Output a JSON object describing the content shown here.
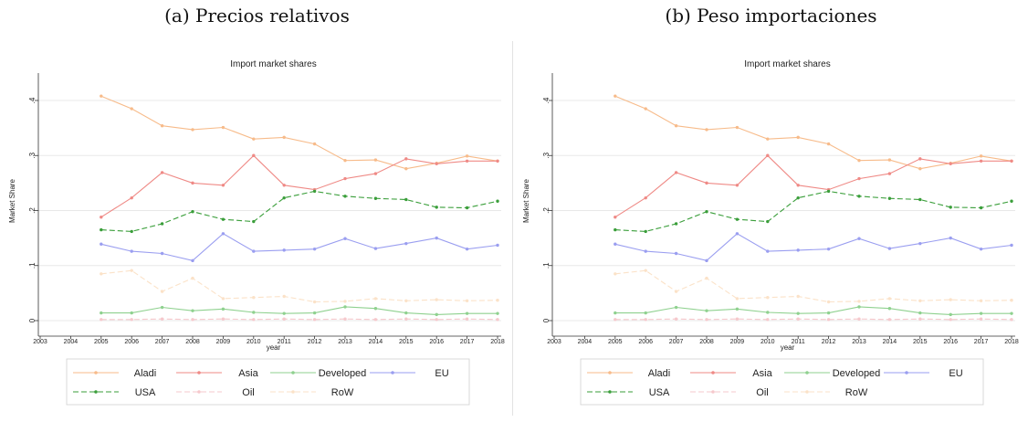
{
  "panels": [
    {
      "caption": "(a) Precios relativos",
      "chart_data": {
        "type": "line",
        "title": "Import market shares",
        "xlabel": "year",
        "ylabel": "Market Share",
        "xlim": [
          2003,
          2018
        ],
        "ylim": [
          0,
          0.4
        ],
        "xticks": [
          "2003",
          "2004",
          "2005",
          "2006",
          "2007",
          "2008",
          "2009",
          "2010",
          "2011",
          "2012",
          "2013",
          "2014",
          "2015",
          "2016",
          "2017",
          "2018"
        ],
        "yticks": [
          "0",
          ".1",
          ".2",
          ".3",
          ".4"
        ],
        "legend_position": "bottom",
        "x": [
          2005,
          2006,
          2007,
          2008,
          2009,
          2010,
          2011,
          2012,
          2013,
          2014,
          2015,
          2016,
          2017,
          2018
        ],
        "series": [
          {
            "name": "Aladi",
            "color": "#f7bb8a",
            "dash": "solid",
            "values": [
              0.408,
              0.385,
              0.354,
              0.347,
              0.351,
              0.33,
              0.333,
              0.321,
              0.291,
              0.292,
              0.276,
              0.286,
              0.299,
              0.29
            ]
          },
          {
            "name": "Asia",
            "color": "#ef8a86",
            "dash": "solid",
            "values": [
              0.188,
              0.223,
              0.269,
              0.25,
              0.246,
              0.3,
              0.246,
              0.238,
              0.258,
              0.267,
              0.294,
              0.285,
              0.29,
              0.29
            ]
          },
          {
            "name": "Developed",
            "color": "#8fd18f",
            "dash": "solid",
            "values": [
              0.014,
              0.014,
              0.024,
              0.018,
              0.021,
              0.015,
              0.013,
              0.014,
              0.025,
              0.022,
              0.014,
              0.011,
              0.013,
              0.013
            ]
          },
          {
            "name": "EU",
            "color": "#9a9ef0",
            "dash": "solid",
            "values": [
              0.139,
              0.126,
              0.122,
              0.109,
              0.158,
              0.126,
              0.128,
              0.13,
              0.149,
              0.131,
              0.14,
              0.15,
              0.13,
              0.137
            ]
          },
          {
            "name": "USA",
            "color": "#3a9e3a",
            "dash": "dashed",
            "values": [
              0.165,
              0.162,
              0.176,
              0.198,
              0.184,
              0.18,
              0.223,
              0.235,
              0.226,
              0.222,
              0.22,
              0.206,
              0.205,
              0.217
            ]
          },
          {
            "name": "Oil",
            "color": "#f6c8cc",
            "dash": "dashed",
            "values": [
              0.002,
              0.002,
              0.003,
              0.002,
              0.003,
              0.002,
              0.003,
              0.002,
              0.003,
              0.002,
              0.003,
              0.002,
              0.003,
              0.002
            ]
          },
          {
            "name": "RoW",
            "color": "#fbe2c8",
            "dash": "dashed",
            "values": [
              0.085,
              0.091,
              0.053,
              0.077,
              0.04,
              0.042,
              0.044,
              0.034,
              0.035,
              0.04,
              0.036,
              0.038,
              0.036,
              0.037
            ]
          }
        ]
      }
    },
    {
      "caption": "(b) Peso importaciones",
      "chart_data": {
        "type": "line",
        "title": "Import market shares",
        "xlabel": "year",
        "ylabel": "Market Share",
        "xlim": [
          2003,
          2018
        ],
        "ylim": [
          0,
          0.4
        ],
        "xticks": [
          "2003",
          "2004",
          "2005",
          "2006",
          "2007",
          "2008",
          "2009",
          "2010",
          "2011",
          "2012",
          "2013",
          "2014",
          "2015",
          "2016",
          "2017",
          "2018"
        ],
        "yticks": [
          "0",
          ".1",
          ".2",
          ".3",
          ".4"
        ],
        "legend_position": "bottom",
        "x": [
          2005,
          2006,
          2007,
          2008,
          2009,
          2010,
          2011,
          2012,
          2013,
          2014,
          2015,
          2016,
          2017,
          2018
        ],
        "series": [
          {
            "name": "Aladi",
            "color": "#f7bb8a",
            "dash": "solid",
            "values": [
              0.408,
              0.385,
              0.354,
              0.347,
              0.351,
              0.33,
              0.333,
              0.321,
              0.291,
              0.292,
              0.276,
              0.286,
              0.299,
              0.29
            ]
          },
          {
            "name": "Asia",
            "color": "#ef8a86",
            "dash": "solid",
            "values": [
              0.188,
              0.223,
              0.269,
              0.25,
              0.246,
              0.3,
              0.246,
              0.238,
              0.258,
              0.267,
              0.294,
              0.285,
              0.29,
              0.29
            ]
          },
          {
            "name": "Developed",
            "color": "#8fd18f",
            "dash": "solid",
            "values": [
              0.014,
              0.014,
              0.024,
              0.018,
              0.021,
              0.015,
              0.013,
              0.014,
              0.025,
              0.022,
              0.014,
              0.011,
              0.013,
              0.013
            ]
          },
          {
            "name": "EU",
            "color": "#9a9ef0",
            "dash": "solid",
            "values": [
              0.139,
              0.126,
              0.122,
              0.109,
              0.158,
              0.126,
              0.128,
              0.13,
              0.149,
              0.131,
              0.14,
              0.15,
              0.13,
              0.137
            ]
          },
          {
            "name": "USA",
            "color": "#3a9e3a",
            "dash": "dashed",
            "values": [
              0.165,
              0.162,
              0.176,
              0.198,
              0.184,
              0.18,
              0.223,
              0.235,
              0.226,
              0.222,
              0.22,
              0.206,
              0.205,
              0.217
            ]
          },
          {
            "name": "Oil",
            "color": "#f6c8cc",
            "dash": "dashed",
            "values": [
              0.002,
              0.002,
              0.003,
              0.002,
              0.003,
              0.002,
              0.003,
              0.002,
              0.003,
              0.002,
              0.003,
              0.002,
              0.003,
              0.002
            ]
          },
          {
            "name": "RoW",
            "color": "#fbe2c8",
            "dash": "dashed",
            "values": [
              0.085,
              0.091,
              0.053,
              0.077,
              0.04,
              0.042,
              0.044,
              0.034,
              0.035,
              0.04,
              0.036,
              0.038,
              0.036,
              0.037
            ]
          }
        ]
      }
    }
  ]
}
